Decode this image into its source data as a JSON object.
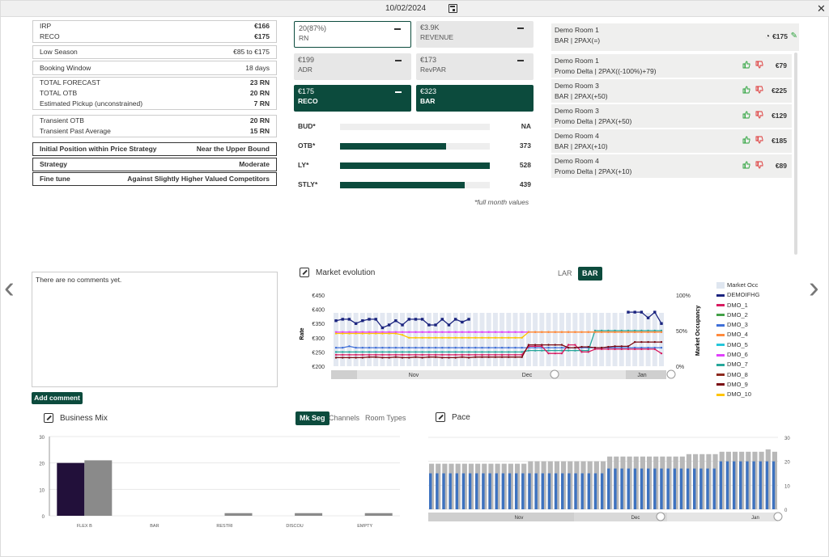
{
  "header": {
    "date": "10/02/2024"
  },
  "left_table": {
    "irp": {
      "label": "IRP",
      "value": "€166"
    },
    "reco": {
      "label": "RECO",
      "value": "€175"
    },
    "season": {
      "label": "Low Season",
      "value": "€85 to €175"
    },
    "booking_window": {
      "label": "Booking Window",
      "value": "18 days"
    },
    "total_forecast": {
      "label": "TOTAL FORECAST",
      "value": "23 RN"
    },
    "total_otb": {
      "label": "TOTAL OTB",
      "value": "20 RN"
    },
    "pickup": {
      "label": "Estimated Pickup (unconstrained)",
      "value": "7 RN"
    },
    "transient_otb": {
      "label": "Transient OTB",
      "value": "20 RN"
    },
    "transient_past": {
      "label": "Transient Past Average",
      "value": "15 RN"
    },
    "initial_position": {
      "label": "Initial Position within Price Strategy",
      "value": "Near the Upper Bound"
    },
    "strategy": {
      "label": "Strategy",
      "value": "Moderate"
    },
    "fine_tune": {
      "label": "Fine tune",
      "value": "Against Slightly Higher Valued Competitors"
    }
  },
  "kpis": {
    "rn": {
      "value": "20(87%)",
      "label": "RN"
    },
    "revenue": {
      "value": "€3.9K",
      "label": "REVENUE"
    },
    "adr": {
      "value": "€199",
      "label": "ADR"
    },
    "revpar": {
      "value": "€173",
      "label": "RevPAR"
    },
    "reco": {
      "value": "€175",
      "label": "RECO"
    },
    "bar": {
      "value": "€323",
      "label": "BAR"
    }
  },
  "progress": {
    "bud": {
      "label": "BUD*",
      "value": "NA",
      "fraction": 0
    },
    "otb": {
      "label": "OTB*",
      "value": "373",
      "fraction": 0.71
    },
    "ly": {
      "label": "LY*",
      "value": "528",
      "fraction": 1.0
    },
    "stly": {
      "label": "STLY*",
      "value": "439",
      "fraction": 0.83
    },
    "note": "*full month values"
  },
  "room_header": {
    "line1": "Demo Room 1",
    "line2": "BAR | 2PAX(=)",
    "price": "€175"
  },
  "rooms": [
    {
      "line1": "Demo Room 1",
      "line2": "Promo Delta | 2PAX((-100%)+79)",
      "price": "€79"
    },
    {
      "line1": "Demo Room 3",
      "line2": "BAR | 2PAX(+50)",
      "price": "€225"
    },
    {
      "line1": "Demo Room 3",
      "line2": "Promo Delta | 2PAX(+50)",
      "price": "€129"
    },
    {
      "line1": "Demo Room 4",
      "line2": "BAR | 2PAX(+10)",
      "price": "€185"
    },
    {
      "line1": "Demo Room 4",
      "line2": "Promo Delta | 2PAX(+10)",
      "price": "€89"
    }
  ],
  "comments": {
    "empty_text": "There are no comments yet.",
    "add_label": "Add comment"
  },
  "market": {
    "title": "Market evolution",
    "tabs": [
      "LAR",
      "BAR"
    ],
    "active_tab": "BAR",
    "legend": [
      "Market Occ",
      "DEMOIFHG",
      "DMO_1",
      "DMO_2",
      "DMO_3",
      "DMO_4",
      "DMO_5",
      "DMO_6",
      "DMO_7",
      "DMO_8",
      "DMO_9",
      "DMO_10"
    ],
    "colors": [
      "#dfe6f0",
      "#1a237e",
      "#d81b60",
      "#43a047",
      "#3f6fd8",
      "#ff8a3d",
      "#26c6da",
      "#e040fb",
      "#26a69a",
      "#8d2a1e",
      "#7a0a12",
      "#ffc400"
    ]
  },
  "business_mix": {
    "title": "Business Mix",
    "tabs": [
      "Mk Seg",
      "Channels",
      "Room Types"
    ],
    "active_tab": "Mk Seg"
  },
  "pace": {
    "title": "Pace"
  },
  "chart_data": [
    {
      "type": "line",
      "title": "Market evolution",
      "ylabel": "Rate",
      "y2label": "Market Occupancy",
      "ylim": [
        200,
        450
      ],
      "yticks": [
        "€200",
        "€250",
        "€300",
        "€350",
        "€400",
        "€450"
      ],
      "y2ticks": [
        "0%",
        "50%",
        "100%"
      ],
      "x_labels": [
        "Nov",
        "Dec",
        "Jan"
      ],
      "series": [
        {
          "name": "DEMOIFHG",
          "values": [
            360,
            365,
            365,
            350,
            360,
            365,
            365,
            335,
            345,
            360,
            345,
            365,
            365,
            365,
            345,
            345,
            365,
            345,
            365,
            355,
            365,
            null,
            null,
            null,
            null,
            null,
            null,
            null,
            null,
            null,
            null,
            null,
            null,
            null,
            null,
            null,
            null,
            null,
            null,
            null,
            null,
            null,
            null,
            null,
            390,
            390,
            390,
            370,
            390,
            350
          ]
        },
        {
          "name": "DMO_6",
          "values": [
            320,
            320,
            320,
            320,
            320,
            320,
            320,
            320,
            320,
            320,
            320,
            320,
            320,
            320,
            320,
            320,
            320,
            320,
            320,
            320,
            320,
            320,
            320,
            320,
            320,
            320,
            320,
            320,
            320,
            320,
            320,
            320,
            320,
            320,
            320,
            320,
            320,
            320,
            320,
            320,
            320,
            320,
            320,
            320,
            320,
            320,
            320,
            320,
            320,
            320
          ]
        },
        {
          "name": "DMO_10",
          "values": [
            315,
            315,
            315,
            315,
            315,
            315,
            315,
            315,
            315,
            315,
            310,
            300,
            300,
            300,
            300,
            300,
            300,
            300,
            300,
            300,
            300,
            300,
            300,
            300,
            300,
            300,
            300,
            300,
            300,
            320,
            320,
            320,
            320,
            320,
            320,
            320,
            320,
            320,
            320,
            320,
            320,
            320,
            320,
            320,
            320,
            320,
            320,
            320,
            320,
            320
          ]
        },
        {
          "name": "DMO_3",
          "values": [
            265,
            265,
            270,
            265,
            265,
            265,
            265,
            265,
            265,
            265,
            265,
            265,
            265,
            265,
            265,
            265,
            265,
            265,
            265,
            265,
            265,
            265,
            265,
            265,
            265,
            265,
            265,
            265,
            265,
            265,
            265,
            265,
            265,
            265,
            265,
            265,
            265,
            265,
            265,
            265,
            265,
            265,
            265,
            265,
            265,
            265,
            265,
            265,
            265,
            265
          ]
        },
        {
          "name": "DMO_7",
          "values": [
            250,
            250,
            250,
            250,
            250,
            250,
            250,
            250,
            250,
            250,
            250,
            250,
            250,
            250,
            250,
            250,
            250,
            250,
            250,
            250,
            250,
            250,
            250,
            250,
            250,
            250,
            250,
            250,
            250,
            255,
            255,
            255,
            255,
            255,
            255,
            255,
            255,
            255,
            255,
            325,
            325,
            325,
            325,
            325,
            325,
            325,
            325,
            325,
            325,
            325
          ]
        },
        {
          "name": "DMO_1",
          "values": [
            240,
            240,
            240,
            240,
            240,
            240,
            240,
            240,
            240,
            240,
            240,
            240,
            240,
            240,
            240,
            240,
            240,
            240,
            240,
            240,
            240,
            240,
            240,
            240,
            240,
            240,
            240,
            240,
            240,
            270,
            270,
            270,
            245,
            245,
            245,
            275,
            275,
            250,
            250,
            260,
            260,
            260,
            260,
            260,
            260,
            260,
            260,
            260,
            260,
            245
          ]
        },
        {
          "name": "DMO_9",
          "values": [
            230,
            230,
            230,
            230,
            230,
            232,
            232,
            230,
            230,
            232,
            230,
            230,
            232,
            230,
            232,
            232,
            230,
            230,
            230,
            232,
            230,
            232,
            232,
            232,
            232,
            232,
            232,
            232,
            232,
            275,
            275,
            275,
            275,
            275,
            275,
            265,
            265,
            268,
            268,
            265,
            265,
            268,
            270,
            270,
            270,
            285,
            285,
            285,
            285,
            285
          ]
        },
        {
          "name": "DMO_4",
          "values": [
            null,
            null,
            null,
            null,
            null,
            null,
            null,
            null,
            null,
            null,
            null,
            null,
            null,
            null,
            null,
            null,
            null,
            null,
            null,
            null,
            null,
            null,
            null,
            null,
            null,
            null,
            null,
            null,
            null,
            320,
            320,
            320,
            320,
            320,
            320,
            320,
            320,
            320,
            320,
            320,
            320,
            320,
            320,
            320,
            320,
            320,
            320,
            320,
            320,
            320
          ]
        }
      ]
    },
    {
      "type": "bar",
      "title": "Business Mix",
      "categories": [
        "FLEX B",
        "BAR",
        "RESTRI",
        "DISCOU",
        "EMPTY"
      ],
      "ylim": [
        0,
        30
      ],
      "series": [
        {
          "values": [
            20,
            0,
            0,
            0,
            0
          ]
        },
        {
          "values": [
            21,
            0,
            1,
            1,
            1
          ]
        }
      ]
    },
    {
      "type": "bar",
      "title": "Pace",
      "x_labels": [
        "Nov",
        "Dec",
        "Jan"
      ],
      "ylim": [
        0,
        30
      ],
      "series": [
        {
          "values": [
            19,
            19,
            19,
            19,
            19,
            19,
            19,
            19,
            19,
            19,
            19,
            19,
            19,
            19,
            19,
            20,
            20,
            20,
            20,
            20,
            20,
            20,
            20,
            20,
            20,
            20,
            20,
            22,
            22,
            22,
            22,
            22,
            22,
            22,
            22,
            22,
            22,
            22,
            22,
            23,
            23,
            23,
            23,
            23,
            24,
            24,
            24,
            24,
            24,
            24,
            24,
            25,
            24
          ]
        },
        {
          "values": [
            15,
            15,
            15,
            15,
            15,
            15,
            15,
            15,
            15,
            15,
            15,
            15,
            15,
            15,
            15,
            15,
            15,
            15,
            15,
            15,
            15,
            15,
            15,
            15,
            15,
            15,
            15,
            17,
            17,
            17,
            17,
            17,
            17,
            17,
            17,
            17,
            17,
            17,
            17,
            17,
            17,
            17,
            17,
            17,
            20,
            20,
            20,
            20,
            20,
            20,
            20,
            20,
            20
          ]
        }
      ]
    }
  ]
}
